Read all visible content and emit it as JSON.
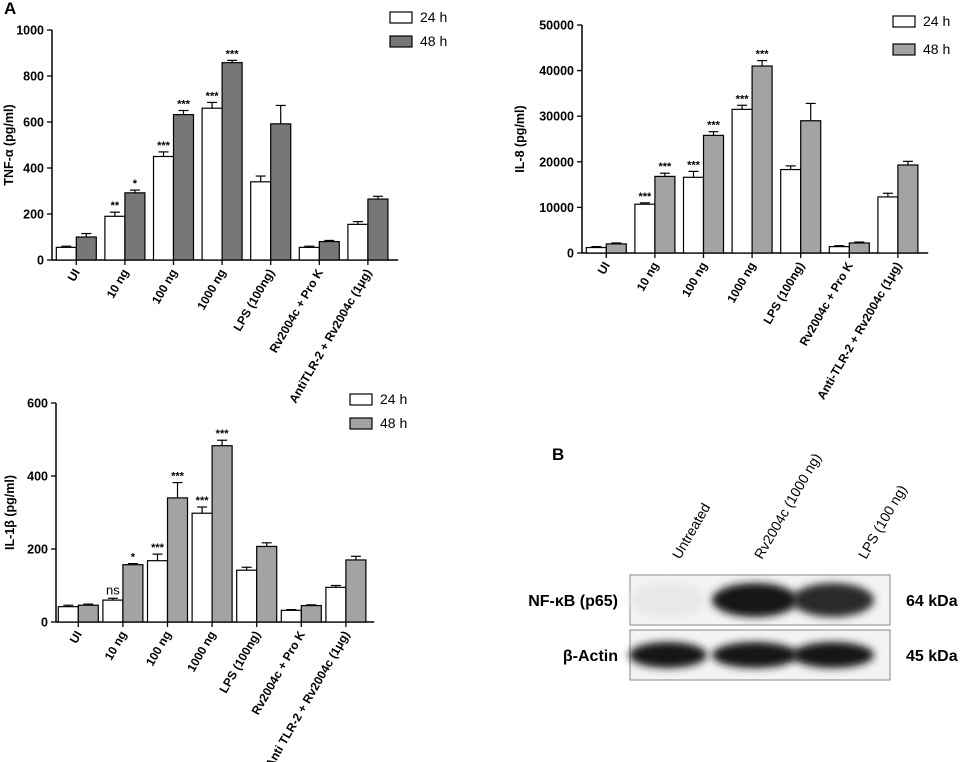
{
  "panels": {
    "a_label": "A",
    "b_label": "B"
  },
  "legend_labels": [
    "24 h",
    "48 h"
  ],
  "colors": {
    "bar_24h": "#ffffff",
    "bar_48h_tnf": "#777777",
    "bar_48h_il8": "#a3a3a3",
    "bar_48h_il1b": "#a3a3a3",
    "axis": "#000000"
  },
  "chart_data": [
    {
      "id": "tnf",
      "type": "bar",
      "ylabel": "TNF-α (pg/ml)",
      "ylim": [
        0,
        1000
      ],
      "yticks": [
        0,
        200,
        400,
        600,
        800,
        1000
      ],
      "categories": [
        "UI",
        "10 ng",
        "100 ng",
        "1000 ng",
        "LPS (100ng)",
        "Rv2004c + Pro K",
        "AntiTLR-2 + Rv2004c (1μg)"
      ],
      "series": [
        {
          "name": "24 h",
          "values": [
            55,
            190,
            450,
            660,
            340,
            55,
            155
          ],
          "errors": [
            5,
            18,
            20,
            25,
            25,
            5,
            12
          ],
          "annotations": [
            "",
            "**",
            "***",
            "***",
            "",
            "",
            ""
          ]
        },
        {
          "name": "48 h",
          "values": [
            100,
            292,
            632,
            858,
            592,
            80,
            265
          ],
          "errors": [
            15,
            12,
            18,
            10,
            80,
            5,
            12
          ],
          "annotations": [
            "",
            "*",
            "***",
            "***",
            "",
            "",
            ""
          ]
        }
      ]
    },
    {
      "id": "il8",
      "type": "bar",
      "ylabel": "IL-8 (pg/ml)",
      "ylim": [
        0,
        50000
      ],
      "yticks": [
        0,
        10000,
        20000,
        30000,
        40000,
        50000
      ],
      "categories": [
        "UI",
        "10 ng",
        "100 ng",
        "1000 ng",
        "LPS (100ng)",
        "Rv2004c + Pro K",
        "Anti-TLR-2 + Rv2004c (1μg)"
      ],
      "series": [
        {
          "name": "24 h",
          "values": [
            1200,
            10700,
            16600,
            31500,
            18300,
            1400,
            12300
          ],
          "errors": [
            200,
            300,
            1300,
            900,
            800,
            200,
            800
          ],
          "annotations": [
            "",
            "***",
            "***",
            "***",
            "",
            "",
            ""
          ]
        },
        {
          "name": "48 h",
          "values": [
            2000,
            16800,
            25800,
            41000,
            29000,
            2200,
            19300
          ],
          "errors": [
            200,
            700,
            800,
            1200,
            3800,
            200,
            800
          ],
          "annotations": [
            "",
            "***",
            "***",
            "***",
            "",
            "",
            ""
          ]
        }
      ]
    },
    {
      "id": "il1b",
      "type": "bar",
      "ylabel": "IL-1β (pg/ml)",
      "ylim": [
        0,
        600
      ],
      "yticks": [
        0,
        200,
        400,
        600
      ],
      "categories": [
        "UI",
        "10 ng",
        "100 ng",
        "1000 ng",
        "LPS (100ng)",
        "Rv2004c + Pro K",
        "Anti TLR-2 + Rv2004c (1μg)"
      ],
      "series": [
        {
          "name": "24 h",
          "values": [
            42,
            60,
            168,
            298,
            142,
            32,
            95
          ],
          "errors": [
            4,
            5,
            18,
            17,
            8,
            2,
            5
          ],
          "annotations": [
            "",
            "ns",
            "***",
            "***",
            "",
            "",
            ""
          ]
        },
        {
          "name": "48 h",
          "values": [
            46,
            157,
            340,
            483,
            207,
            45,
            170
          ],
          "errors": [
            3,
            3,
            42,
            15,
            10,
            2,
            10
          ],
          "annotations": [
            "",
            "*",
            "***",
            "***",
            "",
            "",
            ""
          ]
        }
      ]
    }
  ],
  "blot": {
    "lanes": [
      "Untreated",
      "Rv2004c (1000 ng)",
      "LPS (100 ng)"
    ],
    "rows": [
      {
        "label": "NF-κB (p65)",
        "size": "64 kDa",
        "intensities": [
          0.06,
          1.0,
          0.9
        ]
      },
      {
        "label": "β-Actin",
        "size": "45 kDa",
        "intensities": [
          1.0,
          1.0,
          1.0
        ]
      }
    ]
  }
}
